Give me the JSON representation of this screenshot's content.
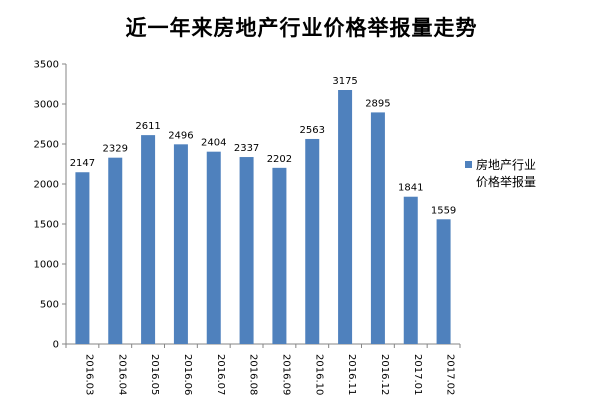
{
  "chart_data": {
    "type": "bar",
    "title": "近一年来房地产行业价格举报量走势",
    "categories": [
      "2016.03",
      "2016.04",
      "2016.05",
      "2016.06",
      "2016.07",
      "2016.08",
      "2016.09",
      "2016.10",
      "2016.11",
      "2016.12",
      "2017.01",
      "2017.02"
    ],
    "series": [
      {
        "name_lines": [
          "房地产行业",
          "价格举报量"
        ],
        "values": [
          2147,
          2329,
          2611,
          2496,
          2404,
          2337,
          2202,
          2563,
          3175,
          2895,
          1841,
          1559
        ],
        "color": "#4F81BD"
      }
    ],
    "ylim": [
      0,
      3500
    ],
    "yticks": [
      0,
      500,
      1000,
      1500,
      2000,
      2500,
      3000,
      3500
    ],
    "grid": false,
    "legend_position": "right"
  }
}
